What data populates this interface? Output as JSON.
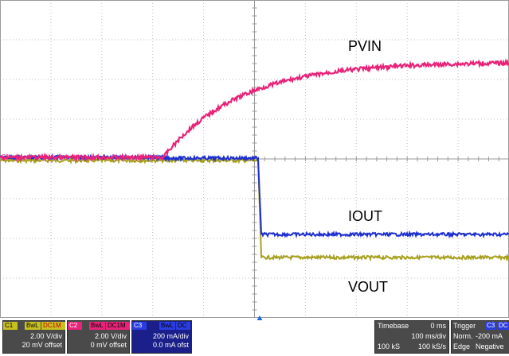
{
  "waveforms": {
    "pvin_label": "PVIN",
    "iout_label": "IOUT",
    "vout_label": "VOUT",
    "colors": {
      "pvin": "#e8247a",
      "iout": "#1e2fd0",
      "vout": "#a8a020",
      "grid": "#bdbdbd"
    },
    "ground_marker": "C3"
  },
  "channels": [
    {
      "id": "C1",
      "badge_bwl": "BwL",
      "badge_coupling": "DC1M",
      "scale": "2.00 V/div",
      "offset": "20 mV offset",
      "color": "#c8c020"
    },
    {
      "id": "C2",
      "badge_bwl": "BwL",
      "badge_coupling": "DC1M",
      "scale": "2.00 V/div",
      "offset": "0 mV offset",
      "color": "#e8247a"
    },
    {
      "id": "C3",
      "badge_bwl": "BwL",
      "badge_coupling": "DC",
      "scale": "200 mA/div",
      "offset": "0.0 mA ofst",
      "color": "#1e2fd0"
    }
  ],
  "timebase": {
    "title": "Timebase",
    "delay": "0 ms",
    "scale": "100 ms/div",
    "samples": "100 kS",
    "rate": "100 kS/s"
  },
  "trigger": {
    "title": "Trigger",
    "channel": "C3",
    "coupling": "DC",
    "mode": "Norm.",
    "level": "-200 mA",
    "type": "Edge",
    "slope": "Negative"
  }
}
